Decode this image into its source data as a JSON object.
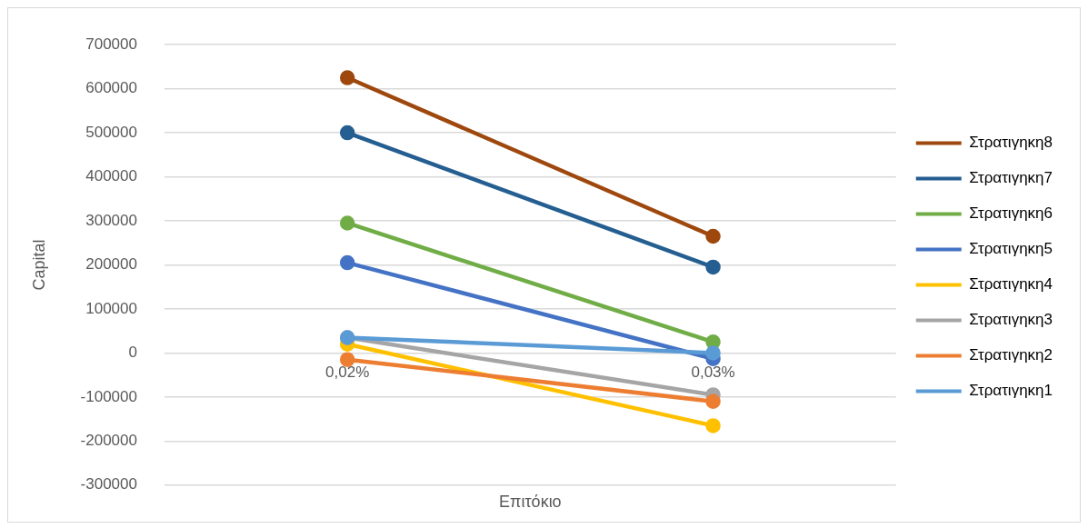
{
  "chart_data": {
    "type": "line",
    "xlabel": "Επιτόκιο",
    "ylabel": "Capital",
    "categories": [
      "0,02%",
      "0,03%"
    ],
    "series": [
      {
        "name": "Στρατιγηκη8",
        "color": "#9e480e",
        "values": [
          625000,
          265000
        ]
      },
      {
        "name": "Στρατιγηκη7",
        "color": "#255e91",
        "values": [
          500000,
          195000
        ]
      },
      {
        "name": "Στρατιγηκη6",
        "color": "#70ad47",
        "values": [
          295000,
          25000
        ]
      },
      {
        "name": "Στρατιγηκη5",
        "color": "#4472c4",
        "values": [
          205000,
          -13000
        ]
      },
      {
        "name": "Στρατιγηκη4",
        "color": "#ffc000",
        "values": [
          20000,
          -165000
        ]
      },
      {
        "name": "Στρατιγηκη3",
        "color": "#a5a5a5",
        "values": [
          35000,
          -95000
        ]
      },
      {
        "name": "Στρατιγηκη2",
        "color": "#ed7d31",
        "values": [
          -15000,
          -110000
        ]
      },
      {
        "name": "Στρατιγηκη1",
        "color": "#5b9bd5",
        "values": [
          35000,
          0
        ]
      }
    ],
    "ylim": [
      -300000,
      700000
    ],
    "yticks": [
      -300000,
      -200000,
      -100000,
      0,
      100000,
      200000,
      300000,
      400000,
      500000,
      600000,
      700000
    ],
    "grid": "y",
    "legend": "right",
    "marker": "circle",
    "line_style": "solid"
  }
}
